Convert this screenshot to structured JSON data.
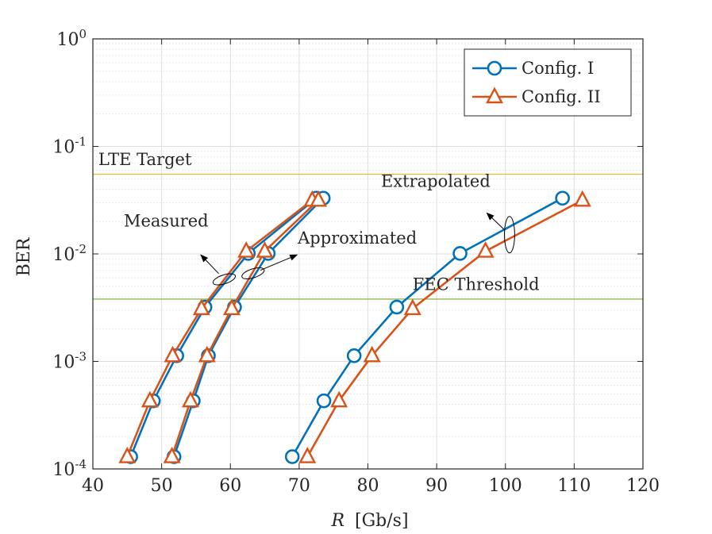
{
  "chart_data": {
    "type": "line",
    "xlabel_symbol": "R",
    "xlabel_unit": "[Gb/s]",
    "ylabel": "BER",
    "xlim": [
      40,
      120
    ],
    "ylim": [
      0.0001,
      1
    ],
    "yscale": "log",
    "grid": true,
    "legend_position": "top-right",
    "x_ticks": [
      {
        "value": 40,
        "label": "40"
      },
      {
        "value": 50,
        "label": "50"
      },
      {
        "value": 60,
        "label": "60"
      },
      {
        "value": 70,
        "label": "70"
      },
      {
        "value": 80,
        "label": "80"
      },
      {
        "value": 90,
        "label": "90"
      },
      {
        "value": 100,
        "label": "100"
      },
      {
        "value": 110,
        "label": "110"
      },
      {
        "value": 120,
        "label": "120"
      }
    ],
    "y_ticks": [
      {
        "value": 0.0001,
        "base": "10",
        "exp": "-4"
      },
      {
        "value": 0.001,
        "base": "10",
        "exp": "-3"
      },
      {
        "value": 0.01,
        "base": "10",
        "exp": "-2"
      },
      {
        "value": 0.1,
        "base": "10",
        "exp": "-1"
      },
      {
        "value": 1,
        "base": "10",
        "exp": "0"
      }
    ],
    "colors": {
      "config1": "#0072BD",
      "config2": "#D95319",
      "lte": "#EDB120",
      "fec": "#77AC30",
      "grid": "#dcdcdc",
      "axis": "#262626"
    },
    "reference_lines": [
      {
        "name": "LTE Target",
        "y": 0.055,
        "color_key": "lte"
      },
      {
        "name": "FEC Threshold",
        "y": 0.0038,
        "color_key": "fec"
      }
    ],
    "series": [
      {
        "name": "Config. I",
        "group": "Measured",
        "marker": "circle",
        "color_key": "config1",
        "points": [
          [
            45.5,
            0.00013
          ],
          [
            48.8,
            0.00043
          ],
          [
            52.2,
            0.00113
          ],
          [
            56.3,
            0.0032
          ],
          [
            62.6,
            0.0101
          ],
          [
            72.5,
            0.033
          ]
        ]
      },
      {
        "name": "Config. II",
        "group": "Measured",
        "marker": "triangle",
        "color_key": "config2",
        "points": [
          [
            45.0,
            0.00013
          ],
          [
            48.3,
            0.00043
          ],
          [
            51.6,
            0.00113
          ],
          [
            55.8,
            0.0031
          ],
          [
            62.3,
            0.0106
          ],
          [
            71.9,
            0.0316
          ]
        ]
      },
      {
        "name": "Config. I",
        "group": "Approximated",
        "marker": "circle",
        "color_key": "config1",
        "points": [
          [
            51.8,
            0.00013
          ],
          [
            54.6,
            0.00043
          ],
          [
            56.8,
            0.00113
          ],
          [
            60.6,
            0.0032
          ],
          [
            65.5,
            0.0101
          ],
          [
            73.5,
            0.033
          ]
        ]
      },
      {
        "name": "Config. II",
        "group": "Approximated",
        "marker": "triangle",
        "color_key": "config2",
        "points": [
          [
            51.5,
            0.00013
          ],
          [
            54.2,
            0.00043
          ],
          [
            56.6,
            0.00113
          ],
          [
            60.2,
            0.0031
          ],
          [
            65.0,
            0.0106
          ],
          [
            72.8,
            0.0316
          ]
        ]
      },
      {
        "name": "Config. I",
        "group": "Extrapolated",
        "marker": "circle",
        "color_key": "config1",
        "points": [
          [
            69.0,
            0.00013
          ],
          [
            73.6,
            0.00043
          ],
          [
            78.0,
            0.00113
          ],
          [
            84.2,
            0.0032
          ],
          [
            93.4,
            0.0101
          ],
          [
            108.3,
            0.033
          ]
        ]
      },
      {
        "name": "Config. II",
        "group": "Extrapolated",
        "marker": "triangle",
        "color_key": "config2",
        "points": [
          [
            71.2,
            0.00013
          ],
          [
            75.8,
            0.00043
          ],
          [
            80.6,
            0.00113
          ],
          [
            86.5,
            0.0031
          ],
          [
            97.1,
            0.0106
          ],
          [
            111.2,
            0.0316
          ]
        ]
      }
    ],
    "legend": [
      {
        "label": "Config. I",
        "marker": "circle",
        "color_key": "config1"
      },
      {
        "label": "Config. II",
        "marker": "triangle",
        "color_key": "config2"
      }
    ],
    "annotations": [
      {
        "text": "LTE Target",
        "x": 40.8,
        "y": 0.067
      },
      {
        "text": "FEC Threshold",
        "x": 86.5,
        "y": 0.0046
      },
      {
        "text": "Measured",
        "x": 44.5,
        "y": 0.018
      },
      {
        "text": "Approximated",
        "x": 69.8,
        "y": 0.0125
      },
      {
        "text": "Extrapolated",
        "x": 81.9,
        "y": 0.042
      }
    ],
    "group_marks": [
      {
        "name": "measured-ellipse-icon",
        "cx": 59.1,
        "cy": 0.0058,
        "rx": 1.7,
        "ry_decades": 0.075,
        "rotate": -18,
        "arrow_to": [
          55.7,
          0.0098
        ]
      },
      {
        "name": "approximated-ellipse-icon",
        "cx": 63.3,
        "cy": 0.0066,
        "rx": 1.7,
        "ry_decades": 0.075,
        "rotate": -18,
        "arrow_to": [
          69.7,
          0.0098
        ]
      },
      {
        "name": "extrapolated-ellipse-icon",
        "cx": 100.6,
        "cy": 0.0151,
        "rx": 1.1,
        "ry_decades": 0.17,
        "rotate": 0,
        "arrow_to": [
          97.3,
          0.024
        ]
      }
    ]
  }
}
